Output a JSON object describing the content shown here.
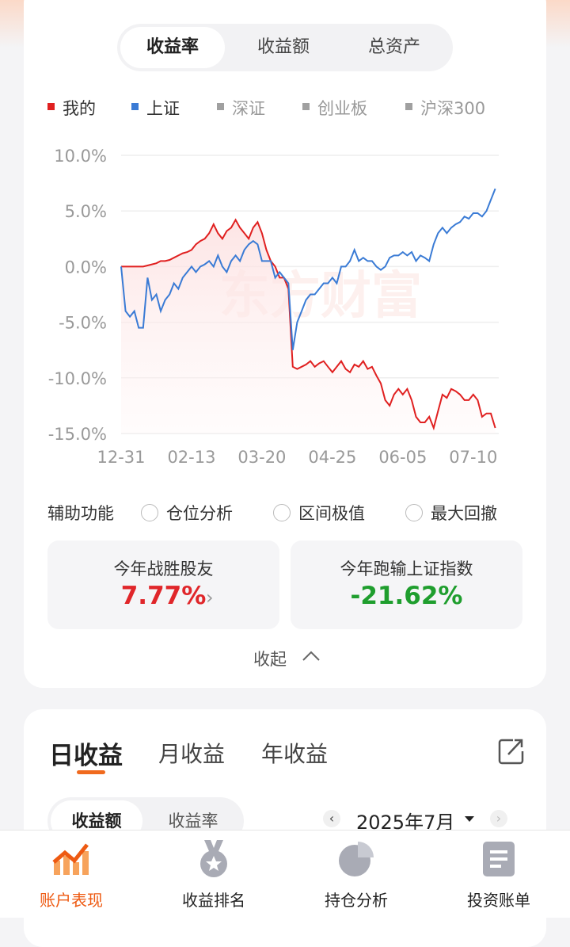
{
  "tabs": [
    "收益率",
    "收益额",
    "总资产"
  ],
  "chart_data": {
    "type": "line",
    "series": [
      {
        "name": "我的",
        "color": "#e02020",
        "values": [
          0,
          0,
          0,
          0,
          0,
          0,
          0.1,
          0.2,
          0.3,
          0.5,
          0.5,
          0.6,
          0.8,
          1,
          1.2,
          1.3,
          1.5,
          2,
          2.3,
          2.5,
          3,
          3.8,
          3,
          2.5,
          3.2,
          3.5,
          4.2,
          3.5,
          3,
          2.5,
          3.5,
          4,
          3,
          1.5,
          0.5,
          0,
          -1,
          -1,
          -2,
          -9,
          -9.2,
          -9,
          -8.8,
          -8.5,
          -9,
          -8.7,
          -8.5,
          -9,
          -9.5,
          -9,
          -8.5,
          -9.2,
          -9.5,
          -8.8,
          -9,
          -8.5,
          -9.2,
          -9,
          -9.8,
          -10.5,
          -12,
          -12.5,
          -11.5,
          -11,
          -11.5,
          -11,
          -12,
          -13.5,
          -14,
          -14,
          -13.5,
          -14.5,
          -13,
          -11.5,
          -11.8,
          -11,
          -11.2,
          -11.5,
          -12,
          -12,
          -11.5,
          -12,
          -13.5,
          -13.2,
          -13.2,
          -14.5
        ]
      },
      {
        "name": "上证",
        "color": "#3a7bd5",
        "values": [
          0,
          -4,
          -4.5,
          -4,
          -5.5,
          -5.5,
          -1,
          -3,
          -2.5,
          -4,
          -3,
          -2.5,
          -1.5,
          -2,
          -1,
          -0.5,
          0,
          -0.5,
          0,
          0.2,
          0.5,
          0,
          1,
          0,
          -0.5,
          0.5,
          1,
          0.5,
          1.5,
          2,
          2.3,
          2,
          0.5,
          0.5,
          0.5,
          -1,
          -0.5,
          -1,
          -1.5,
          -7.5,
          -5,
          -4,
          -3,
          -2.5,
          -2.5,
          -2,
          -1.5,
          -1.5,
          -1,
          -1.5,
          0,
          0,
          0.5,
          1.5,
          0.5,
          0.8,
          0.5,
          0.5,
          0,
          -0.3,
          0,
          0.8,
          1,
          1,
          1.3,
          1,
          1.3,
          0.5,
          1,
          0.8,
          0.5,
          2,
          3,
          3.5,
          3,
          3.5,
          3.8,
          4,
          4.5,
          4.3,
          4.8,
          4.8,
          4.5,
          5,
          6,
          7
        ]
      }
    ],
    "inactive_series": [
      {
        "name": "深证",
        "color": "#a0a0a0"
      },
      {
        "name": "创业板",
        "color": "#a0a0a0"
      },
      {
        "name": "沪深300",
        "color": "#a0a0a0"
      }
    ],
    "categories": [
      "12-31",
      null,
      null,
      null,
      null,
      null,
      null,
      null,
      null,
      null,
      null,
      null,
      null,
      null,
      null,
      null,
      "02-13",
      null,
      null,
      null,
      null,
      null,
      null,
      null,
      null,
      null,
      null,
      null,
      null,
      null,
      null,
      null,
      "03-20",
      null,
      null,
      null,
      null,
      null,
      null,
      null,
      null,
      null,
      null,
      null,
      null,
      null,
      null,
      null,
      "04-25",
      null,
      null,
      null,
      null,
      null,
      null,
      null,
      null,
      null,
      null,
      null,
      null,
      null,
      null,
      null,
      "06-05",
      null,
      null,
      null,
      null,
      null,
      null,
      null,
      null,
      null,
      null,
      null,
      null,
      null,
      null,
      null,
      "07-10",
      null,
      null,
      null,
      null,
      null
    ],
    "ylim": [
      -15,
      10
    ],
    "yticks": [
      {
        "value": 10,
        "label": "10.0%"
      },
      {
        "value": 5,
        "label": "5.0%"
      },
      {
        "value": 0,
        "label": "0.0%"
      },
      {
        "value": -5,
        "label": "-5.0%"
      },
      {
        "value": -10,
        "label": "-10.0%"
      },
      {
        "value": -15,
        "label": "-15.0%"
      }
    ],
    "grid": true,
    "watermark": "东方财富"
  },
  "tools": {
    "label": "辅助功能",
    "options": [
      "仓位分析",
      "区间极值",
      "最大回撤"
    ]
  },
  "stats": [
    {
      "label": "今年战胜股友",
      "value": "7.77%"
    },
    {
      "label": "今年跑输上证指数",
      "value": "-21.62%"
    }
  ],
  "collapse": "收起",
  "daily": {
    "tabs": [
      "日收益",
      "月收益",
      "年收益"
    ],
    "subtabs": [
      "收益额",
      "收益率"
    ],
    "month": "2025年7月"
  },
  "nav": [
    "账户表现",
    "收益排名",
    "持仓分析",
    "投资账单"
  ]
}
